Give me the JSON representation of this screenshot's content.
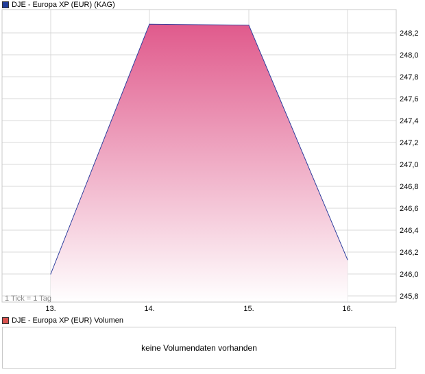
{
  "colors": {
    "price_legend": "#1f3c99",
    "volume_legend": "#d9534f",
    "line": "#2e3f9e",
    "fill_top": "#e05a8c",
    "fill_bottom": "#ffffff",
    "grid": "#d9d9d9",
    "frame": "#c8c8c8"
  },
  "price_legend": "DJE - Europa XP (EUR) (KAG)",
  "volume_legend": "DJE - Europa XP (EUR) Volumen",
  "tick_note": "1 Tick = 1 Tag",
  "volume_message": "keine Volumendaten vorhanden",
  "chart_data": {
    "type": "area",
    "x_labels": [
      "13.",
      "14.",
      "15.",
      "16."
    ],
    "y_tick_labels": [
      "245,8",
      "246,0",
      "246,2",
      "246,4",
      "246,6",
      "246,8",
      "247,0",
      "247,2",
      "247,4",
      "247,6",
      "247,8",
      "248,0",
      "248,2"
    ],
    "y_ticks": [
      245.8,
      246.0,
      246.2,
      246.4,
      246.6,
      246.8,
      247.0,
      247.2,
      247.4,
      247.6,
      247.8,
      248.0,
      248.2
    ],
    "ylim": [
      245.75,
      248.3
    ],
    "series": [
      {
        "x": [
          13,
          14,
          15,
          16
        ],
        "values": [
          246.0,
          248.28,
          248.27,
          246.13
        ]
      }
    ],
    "xlabel": "",
    "ylabel": "",
    "grid": true
  }
}
